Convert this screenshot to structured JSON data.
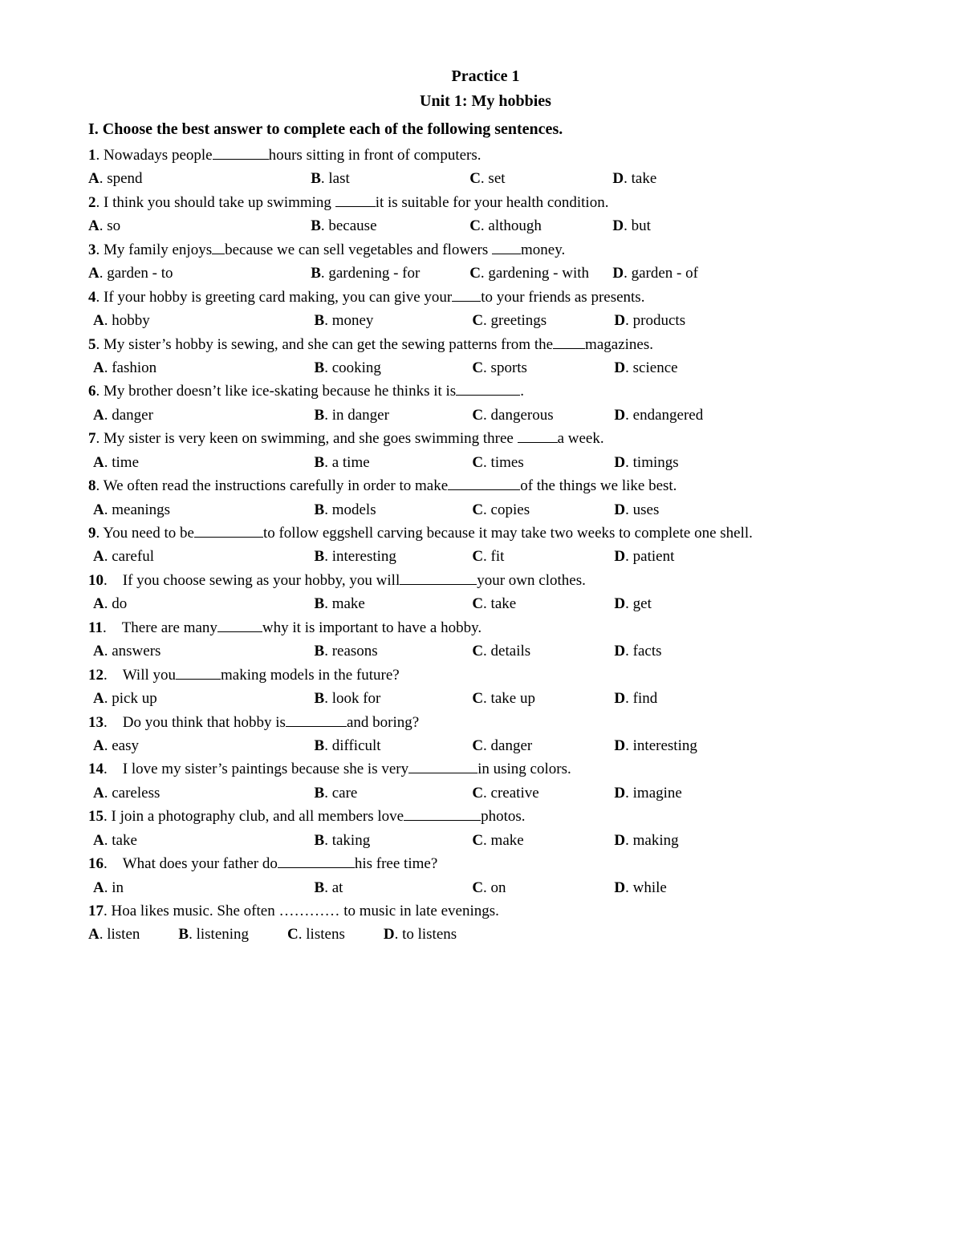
{
  "title": "Practice 1",
  "subtitle": "Unit 1: My hobbies",
  "instructions": "I. Choose the best answer to complete each of the following sentences.",
  "questions": [
    {
      "num": "1",
      "pre": "Nowadays people",
      "blank_w": 70,
      "post": "hours sitting in front of computers.",
      "A": "spend",
      "B": "last",
      "C": "set",
      "D": "take"
    },
    {
      "num": "2",
      "pre": "I think you should take up swimming ",
      "blank_w": 50,
      "post": "it is suitable for your health condition.",
      "A": "so",
      "B": "because",
      "C": "although",
      "D": "but"
    },
    {
      "num": "3",
      "pre": "My family enjoys",
      "blank_w": 16,
      "mid": "because we can sell vegetables and flowers ",
      "blank2_w": 36,
      "post": "money.",
      "A": "garden - to",
      "B": "gardening - for",
      "C": "gardening - with",
      "D": "garden - of"
    },
    {
      "num": "4",
      "pre": "If your hobby is greeting card making, you can give your",
      "blank_w": 36,
      "post": "to your friends as presents.",
      "A": "hobby",
      "B": "money",
      "C": "greetings",
      "D": "products",
      "indent": true
    },
    {
      "num": "5",
      "pre": "My sister’s hobby is sewing, and she can get the sewing patterns from the",
      "blank_w": 40,
      "post": "magazines.",
      "A": "fashion",
      "B": "cooking",
      "C": "sports",
      "D": "science",
      "indent": true
    },
    {
      "num": "6",
      "pre": "My brother doesn’t like ice-skating because he thinks it is",
      "blank_w": 80,
      "post": ".",
      "A": "danger",
      "B": "in danger",
      "C": "dangerous",
      "D": "endangered",
      "indent": true
    },
    {
      "num": "7",
      "pre": "My sister is very keen on swimming, and she goes swimming three ",
      "blank_w": 50,
      "post": "a week.",
      "A": "time",
      "B": "a time",
      "C": "times",
      "D": "timings",
      "indent": true
    },
    {
      "num": "8",
      "pre": "We often read the instructions carefully in order to make",
      "blank_w": 90,
      "post": "of the things we like best.",
      "A": "meanings",
      "B": "models",
      "C": "copies",
      "D": "uses",
      "indent": true
    },
    {
      "num": "9",
      "pre": "You need to be",
      "blank_w": 86,
      "post": "to follow eggshell carving because it may take two weeks to complete one shell.",
      "A": "careful",
      "B": "interesting",
      "C": "fit",
      "D": "patient",
      "indent": true,
      "justify": true
    },
    {
      "num": "10",
      "gap": true,
      "pre": "If you choose sewing as your hobby, you will",
      "blank_w": 96,
      "post": "your own clothes.",
      "A": "do",
      "B": "make",
      "C": "take",
      "D": "get",
      "indent": true
    },
    {
      "num": "11",
      "gap": true,
      "pre": "There are many",
      "blank_w": 56,
      "post": "why it is important to have a hobby.",
      "A": "answers",
      "B": "reasons",
      "C": "details",
      "D": "facts",
      "indent": true
    },
    {
      "num": "12",
      "gap": true,
      "pre": "Will you",
      "blank_w": 56,
      "post": "making models in the future?",
      "A": "pick up",
      "B": "look for",
      "C": "take up",
      "D": "find",
      "indent": true
    },
    {
      "num": "13",
      "gap": true,
      "pre": "Do you think that hobby is",
      "blank_w": 76,
      "post": "and boring?",
      "A": "easy",
      "B": "difficult",
      "C": "danger",
      "D": "interesting",
      "indent": true
    },
    {
      "num": "14",
      "gap": true,
      "pre": "I love my sister’s paintings because she is very",
      "blank_w": 86,
      "post": "in using colors.",
      "A": "careless",
      "B": "care",
      "C": "creative",
      "D": "imagine",
      "indent": true
    },
    {
      "num": "15",
      "pre": "I join a photography club, and all members love",
      "blank_w": 96,
      "post": "photos.",
      "A": "take",
      "B": "taking",
      "C": "make",
      "D": "making",
      "indent": true
    },
    {
      "num": "16",
      "gap": true,
      "pre": "What does your father do",
      "blank_w": 96,
      "post": "his free time?",
      "A": "in",
      "B": "at",
      "C": "on",
      "D": "while",
      "indent": true
    },
    {
      "num": "17",
      "pre": "Hoa likes music. She often ………… to music in late evenings.",
      "no_blank": true,
      "A": "listen",
      "B": "listening",
      "C": "listens",
      "D": "to listens",
      "inline": true
    }
  ]
}
